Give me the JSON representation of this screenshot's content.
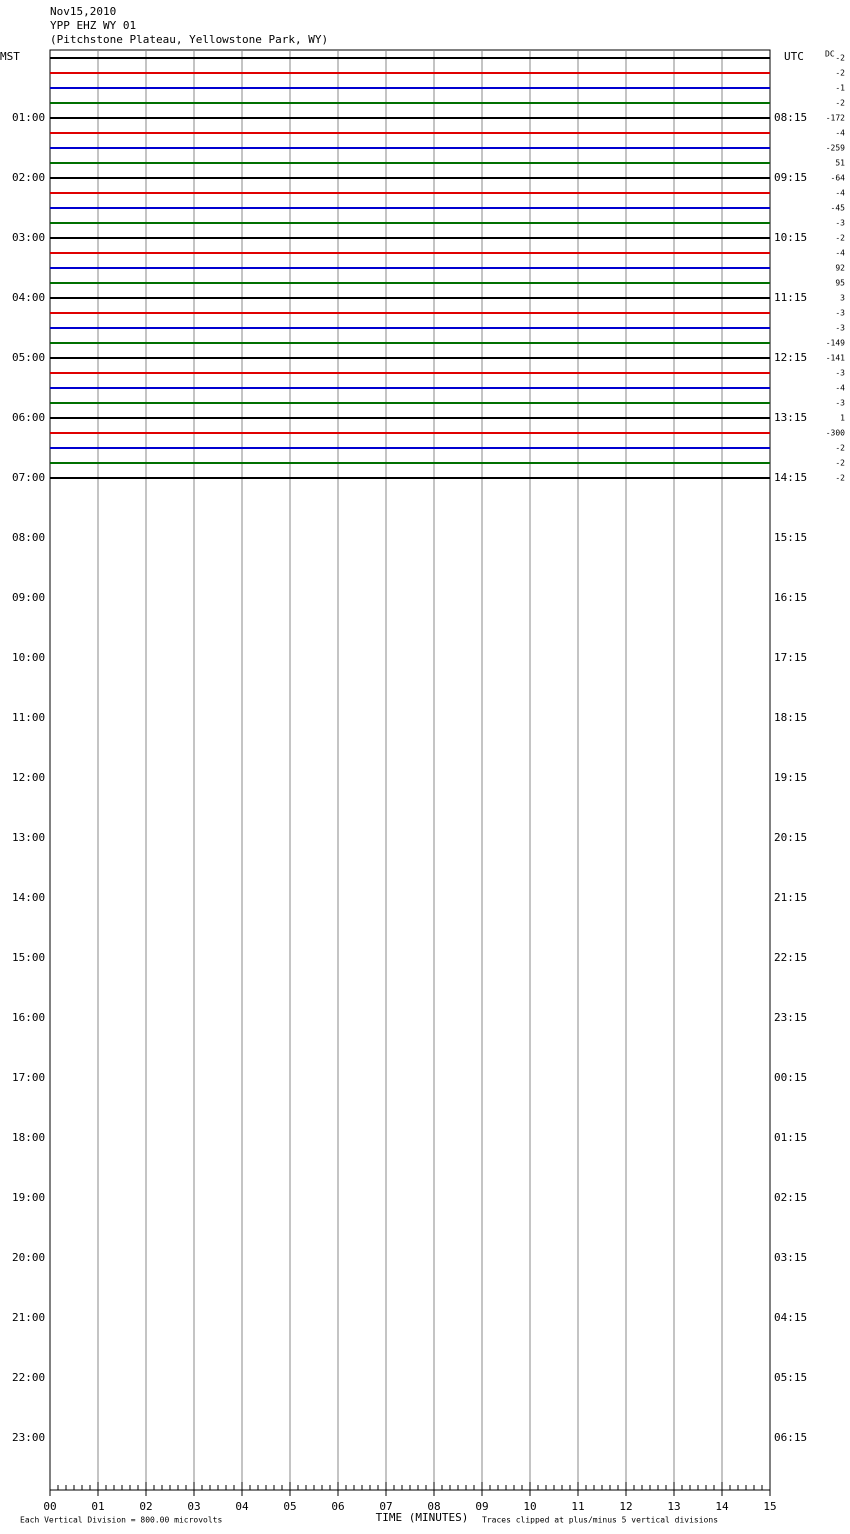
{
  "chart_data": {
    "type": "helicorder",
    "title_lines": [
      "Nov15,2010",
      "YPP EHZ WY 01",
      "(Pitchstone Plateau, Yellowstone Park, WY)"
    ],
    "left_axis_label": "MST",
    "right_axis_label": "UTC",
    "dc_label": "DC",
    "mst_labels": [
      "01:00",
      "02:00",
      "03:00",
      "04:00",
      "05:00",
      "06:00",
      "07:00",
      "08:00",
      "09:00",
      "10:00",
      "11:00",
      "12:00",
      "13:00",
      "14:00",
      "15:00",
      "16:00",
      "17:00",
      "18:00",
      "19:00",
      "20:00",
      "21:00",
      "22:00",
      "23:00"
    ],
    "utc_labels": [
      "08:15",
      "09:15",
      "10:15",
      "11:15",
      "12:15",
      "13:15",
      "14:15",
      "15:15",
      "16:15",
      "17:15",
      "18:15",
      "19:15",
      "20:15",
      "21:15",
      "22:15",
      "23:15",
      "00:15",
      "01:15",
      "02:15",
      "03:15",
      "04:15",
      "05:15",
      "06:15"
    ],
    "dc_offsets": [
      -2,
      -2,
      -1,
      -2,
      -172,
      -4,
      -259,
      51,
      -64,
      -4,
      -45,
      -3,
      -2,
      -4,
      92,
      95,
      3,
      -3,
      -3,
      -149,
      -141,
      -3,
      -4,
      -3,
      1,
      -300,
      -2,
      -2,
      -2
    ],
    "trace_colors": [
      "#000000",
      "#e00000",
      "#0000d0",
      "#007000"
    ],
    "x_labels": [
      "00",
      "01",
      "02",
      "03",
      "04",
      "05",
      "06",
      "07",
      "08",
      "09",
      "10",
      "11",
      "12",
      "13",
      "14",
      "15"
    ],
    "xlabel": "TIME (MINUTES)",
    "scale_note": "Each Vertical Division =  800.00 microvolts",
    "clip_note": "Traces clipped at plus/minus 5 vertical divisions"
  }
}
